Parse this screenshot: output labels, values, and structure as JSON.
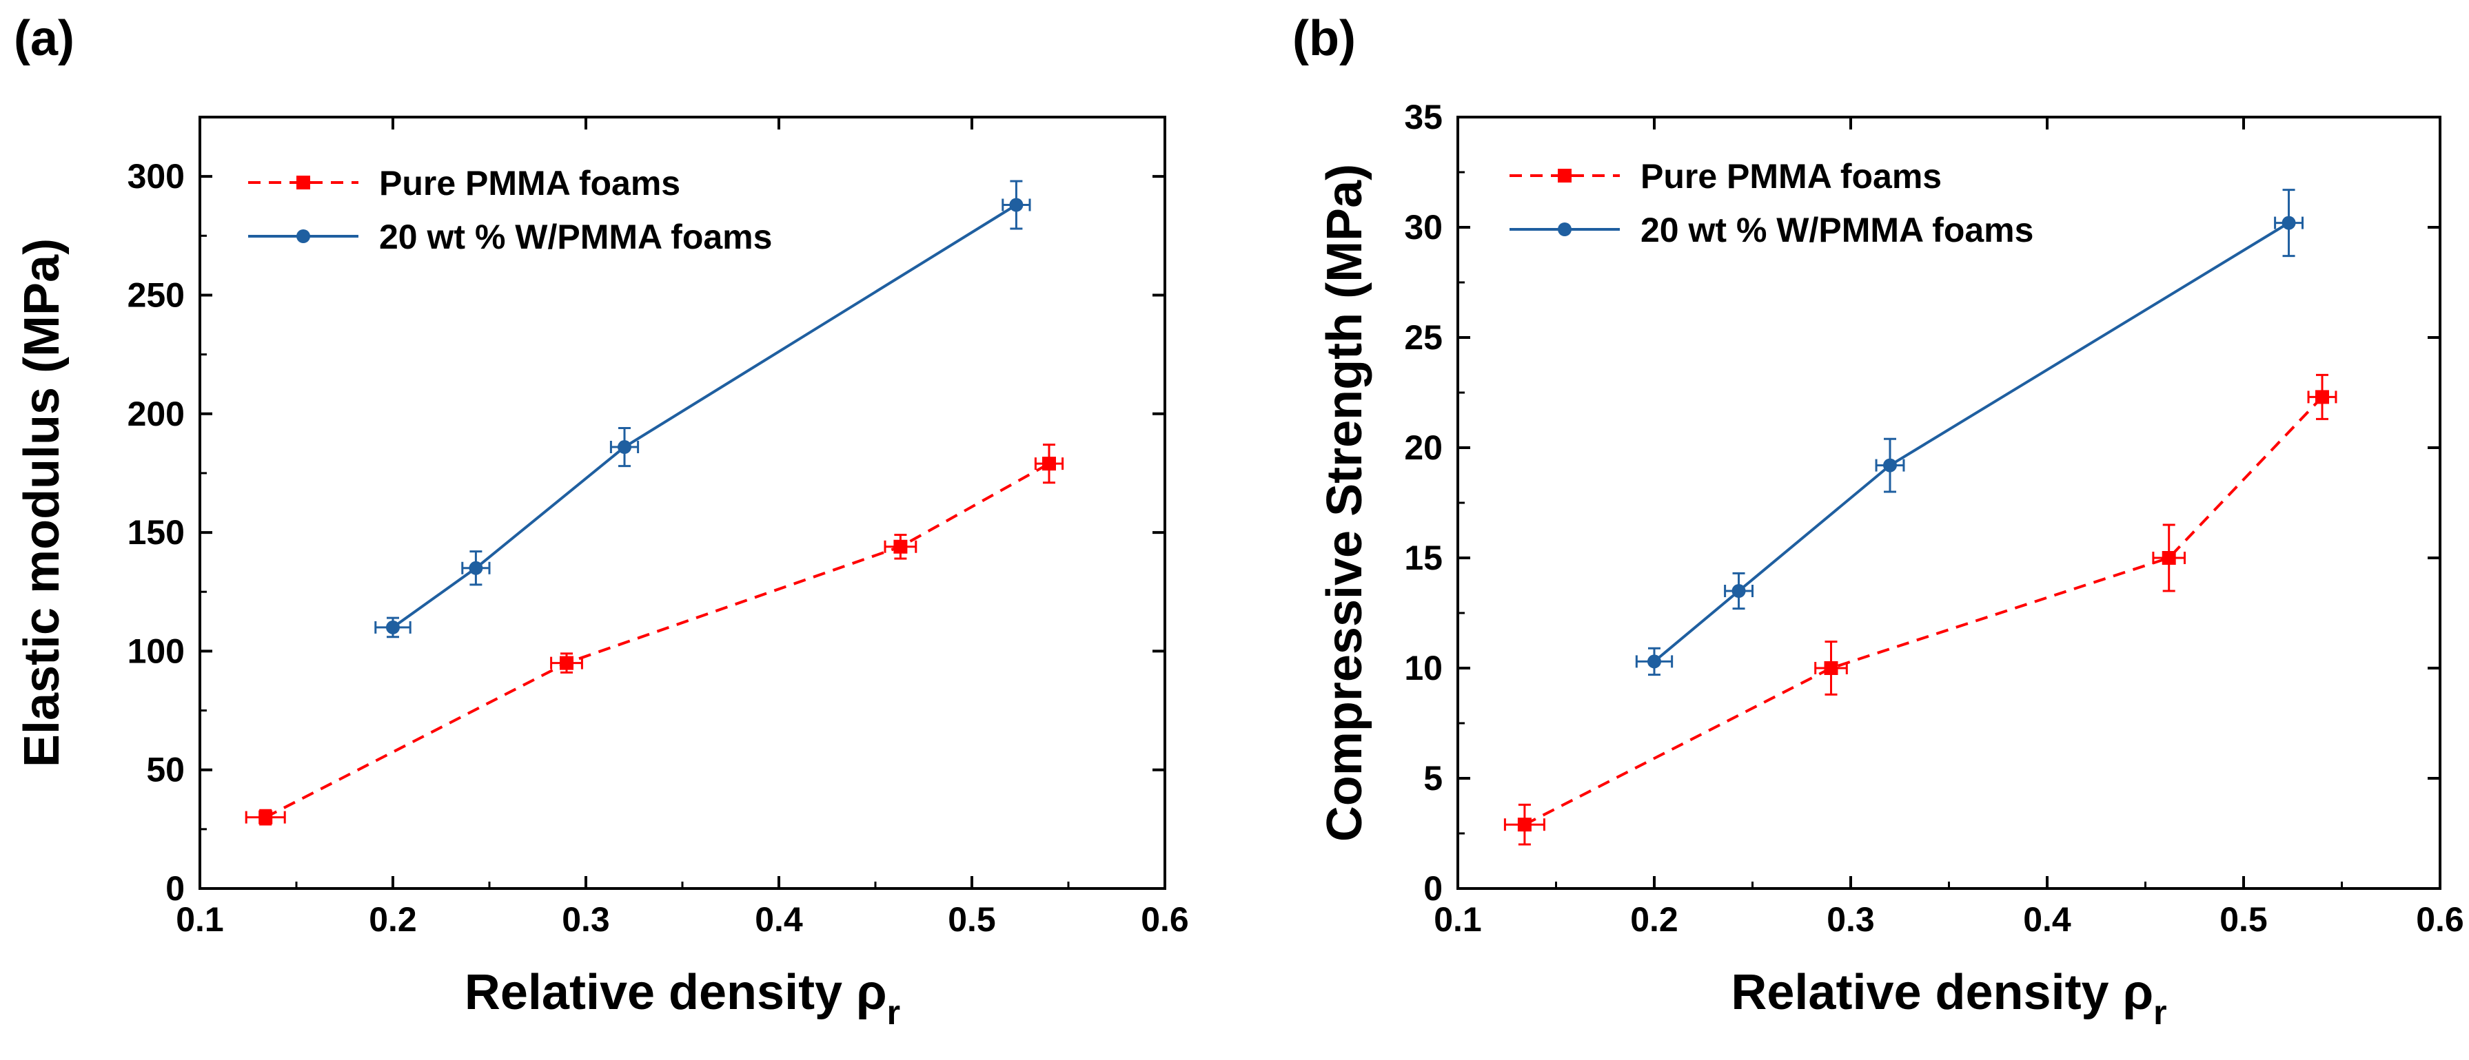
{
  "chart_data": [
    {
      "type": "scatter",
      "panel_label": "(a)",
      "xlabel": "Relative density ρ",
      "xlabel_subscript": "r",
      "ylabel": "Elastic modulus (MPa)",
      "xlim": [
        0.1,
        0.6
      ],
      "ylim": [
        0,
        325
      ],
      "xticks": [
        0.1,
        0.2,
        0.3,
        0.4,
        0.5,
        0.6
      ],
      "xtick_labels": [
        "0.1",
        "0.2",
        "0.3",
        "0.4",
        "0.5",
        "0.6"
      ],
      "yticks": [
        0,
        50,
        100,
        150,
        200,
        250,
        300
      ],
      "ytick_labels": [
        "0",
        "50",
        "100",
        "150",
        "200",
        "250",
        "300"
      ],
      "grid": false,
      "legend_position": "top-left",
      "series": [
        {
          "name": "Pure PMMA foams",
          "color": "#ff0000",
          "line_style": "dashed",
          "marker": "square",
          "x": [
            0.134,
            0.29,
            0.463,
            0.54
          ],
          "y": [
            30,
            95,
            144,
            179
          ],
          "xerr": [
            0.01,
            0.008,
            0.008,
            0.007
          ],
          "yerr": [
            3,
            4,
            5,
            8
          ]
        },
        {
          "name": "20 wt % W/PMMA foams",
          "color": "#1f5fa0",
          "line_style": "solid",
          "marker": "circle",
          "x": [
            0.2,
            0.243,
            0.32,
            0.523
          ],
          "y": [
            110,
            135,
            186,
            288
          ],
          "xerr": [
            0.009,
            0.007,
            0.007,
            0.007
          ],
          "yerr": [
            4,
            7,
            8,
            10
          ]
        }
      ]
    },
    {
      "type": "scatter",
      "panel_label": "(b)",
      "xlabel": "Relative density ρ",
      "xlabel_subscript": "r",
      "ylabel": "Compressive Strength (MPa)",
      "xlim": [
        0.1,
        0.6
      ],
      "ylim": [
        0,
        35
      ],
      "xticks": [
        0.1,
        0.2,
        0.3,
        0.4,
        0.5,
        0.6
      ],
      "xtick_labels": [
        "0.1",
        "0.2",
        "0.3",
        "0.4",
        "0.5",
        "0.6"
      ],
      "yticks": [
        0,
        5,
        10,
        15,
        20,
        25,
        30,
        35
      ],
      "ytick_labels": [
        "0",
        "5",
        "10",
        "15",
        "20",
        "25",
        "30",
        "35"
      ],
      "grid": false,
      "legend_position": "top-left",
      "series": [
        {
          "name": "Pure PMMA foams",
          "color": "#ff0000",
          "line_style": "dashed",
          "marker": "square",
          "x": [
            0.134,
            0.29,
            0.462,
            0.54
          ],
          "y": [
            2.9,
            10,
            15,
            22.3
          ],
          "xerr": [
            0.01,
            0.008,
            0.008,
            0.007
          ],
          "yerr": [
            0.9,
            1.2,
            1.5,
            1.0
          ]
        },
        {
          "name": "20 wt % W/PMMA foams",
          "color": "#1f5fa0",
          "line_style": "solid",
          "marker": "circle",
          "x": [
            0.2,
            0.243,
            0.32,
            0.523
          ],
          "y": [
            10.3,
            13.5,
            19.2,
            30.2
          ],
          "xerr": [
            0.009,
            0.007,
            0.007,
            0.007
          ],
          "yerr": [
            0.6,
            0.8,
            1.2,
            1.5
          ]
        }
      ]
    }
  ]
}
